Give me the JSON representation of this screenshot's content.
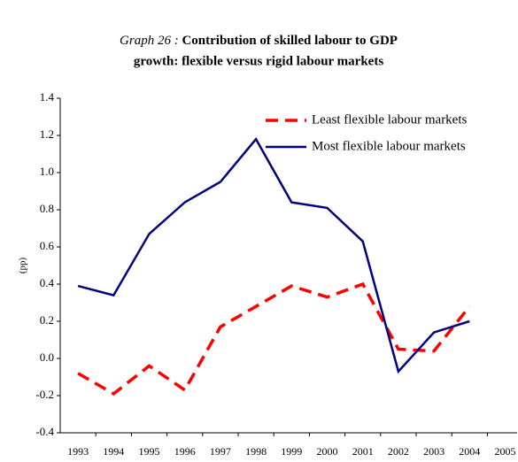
{
  "chart_data": {
    "type": "line",
    "graph_label": "Graph 26 :",
    "title": [
      "Contribution of skilled labour to GDP",
      "growth: flexible versus rigid labour markets"
    ],
    "y_label": "(pp)",
    "categories": [
      "1993",
      "1994",
      "1995",
      "1996",
      "1997",
      "1998",
      "1999",
      "2000",
      "2001",
      "2002",
      "2003",
      "2004",
      "2005"
    ],
    "series": [
      {
        "name": "Least flexible labour markets",
        "color": "#ff0000",
        "dash": true,
        "values": [
          -0.08,
          -0.19,
          -0.04,
          -0.17,
          0.17,
          0.28,
          0.39,
          0.33,
          0.4,
          0.05,
          0.04,
          0.28,
          null
        ]
      },
      {
        "name": "Most flexible labour markets",
        "color": "#000080",
        "dash": false,
        "values": [
          0.39,
          0.34,
          0.67,
          0.84,
          0.95,
          1.18,
          0.84,
          0.81,
          0.63,
          -0.07,
          0.14,
          0.2,
          null
        ]
      }
    ],
    "ylim": [
      -0.4,
      1.4
    ],
    "yticks": [
      -0.4,
      -0.2,
      {
        "value": 0,
        "label": "0.0"
      },
      0.2,
      0.4,
      0.6,
      0.8,
      {
        "value": 1,
        "label": "1.0"
      },
      1.2,
      1.4
    ],
    "legend": "top-right"
  }
}
